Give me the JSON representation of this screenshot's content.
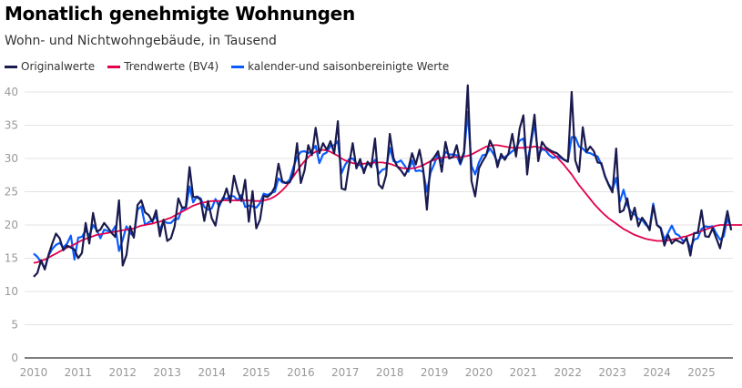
{
  "chart_data": {
    "type": "line",
    "title": "Monatlich genehmigte Wohnungen",
    "subtitle": "Wohn- und Nichtwohngebäude, in Tausend",
    "xlabel": "",
    "ylabel": "",
    "ylim": [
      0,
      40
    ],
    "yticks": [
      "0",
      "5",
      "10",
      "15",
      "20",
      "25",
      "30",
      "35",
      "40"
    ],
    "xticks": [
      "2010",
      "2011",
      "2012",
      "2013",
      "2014",
      "2015",
      "2016",
      "2017",
      "2018",
      "2019",
      "2020",
      "2021",
      "2022",
      "2023",
      "2024",
      "2025"
    ],
    "x_start": "2010-01",
    "x_frequency": "monthly",
    "grid": true,
    "legend_position": "top-left",
    "series": [
      {
        "name": "Originalwerte",
        "color": "#1a1a4e",
        "values": [
          12.2,
          12.8,
          14.7,
          13.3,
          15.5,
          17.2,
          18.7,
          18.0,
          16.2,
          16.9,
          16.6,
          16.3,
          15.0,
          15.8,
          20.3,
          17.2,
          21.8,
          19.0,
          19.3,
          20.3,
          19.6,
          18.8,
          18.2,
          23.7,
          13.9,
          15.5,
          19.8,
          18.1,
          23.0,
          23.7,
          21.9,
          21.5,
          20.5,
          22.2,
          18.3,
          20.8,
          17.6,
          18.0,
          19.8,
          24.0,
          22.6,
          22.7,
          28.7,
          24.2,
          24.2,
          23.8,
          20.6,
          23.6,
          21.0,
          19.9,
          23.2,
          23.8,
          25.5,
          23.4,
          27.4,
          25.1,
          23.6,
          26.8,
          20.5,
          25.1,
          19.5,
          20.8,
          24.4,
          24.2,
          24.7,
          25.7,
          29.2,
          26.6,
          26.3,
          26.4,
          27.8,
          32.3,
          26.3,
          28.2,
          32.0,
          30.5,
          34.6,
          30.8,
          32.3,
          31.3,
          32.6,
          30.8,
          35.6,
          25.5,
          25.3,
          29.0,
          32.3,
          28.5,
          29.9,
          27.8,
          29.5,
          28.7,
          33.0,
          26.1,
          25.5,
          27.5,
          33.7,
          30.0,
          28.8,
          28.2,
          27.4,
          28.5,
          30.8,
          29.1,
          31.3,
          28.3,
          22.3,
          29.5,
          30.2,
          31.1,
          28.0,
          32.5,
          30.0,
          30.2,
          32.0,
          29.3,
          31.0,
          41.0,
          26.6,
          24.3,
          28.5,
          29.6,
          30.5,
          32.7,
          31.5,
          28.7,
          30.7,
          29.8,
          30.8,
          33.7,
          30.3,
          34.5,
          36.5,
          27.6,
          32.5,
          36.6,
          29.6,
          32.5,
          31.7,
          31.3,
          31.0,
          30.8,
          30.3,
          29.8,
          29.5,
          40.0,
          29.7,
          28.0,
          34.7,
          31.0,
          31.8,
          31.1,
          29.4,
          29.3,
          27.3,
          26.0,
          24.9,
          31.5,
          21.9,
          22.2,
          24.0,
          20.8,
          22.6,
          19.8,
          21.1,
          20.3,
          19.2,
          22.9,
          20.0,
          19.5,
          16.9,
          18.5,
          17.2,
          17.8,
          17.5,
          17.2,
          18.1,
          15.4,
          18.8,
          18.8,
          22.2,
          18.3,
          18.2,
          19.5,
          18.0,
          16.5,
          19.2,
          22.1,
          19.2
        ]
      },
      {
        "name": "Trendwerte (BV4)",
        "color": "#e2004b",
        "values": [
          14.3,
          14.4,
          14.6,
          14.8,
          15.1,
          15.4,
          15.7,
          16.0,
          16.3,
          16.6,
          16.8,
          17.1,
          17.4,
          17.7,
          17.9,
          18.1,
          18.3,
          18.5,
          18.6,
          18.7,
          18.8,
          18.9,
          19.0,
          19.1,
          19.2,
          19.3,
          19.4,
          19.5,
          19.7,
          19.9,
          20.0,
          20.1,
          20.2,
          20.4,
          20.5,
          20.7,
          20.9,
          21.1,
          21.4,
          21.7,
          22.0,
          22.3,
          22.6,
          22.9,
          23.1,
          23.3,
          23.4,
          23.5,
          23.6,
          23.6,
          23.6,
          23.7,
          23.7,
          23.7,
          23.7,
          23.7,
          23.7,
          23.7,
          23.7,
          23.6,
          23.6,
          23.6,
          23.7,
          23.8,
          24.0,
          24.3,
          24.7,
          25.2,
          25.8,
          26.5,
          27.3,
          28.1,
          28.9,
          29.6,
          30.2,
          30.7,
          31.0,
          31.2,
          31.3,
          31.2,
          31.0,
          30.7,
          30.4,
          30.0,
          29.7,
          29.5,
          29.3,
          29.2,
          29.2,
          29.2,
          29.3,
          29.3,
          29.4,
          29.4,
          29.4,
          29.3,
          29.2,
          29.0,
          28.8,
          28.6,
          28.5,
          28.5,
          28.5,
          28.6,
          28.8,
          29.0,
          29.3,
          29.6,
          29.8,
          30.0,
          30.1,
          30.2,
          30.2,
          30.2,
          30.2,
          30.2,
          30.3,
          30.4,
          30.6,
          30.9,
          31.2,
          31.5,
          31.8,
          31.9,
          32.0,
          32.0,
          31.9,
          31.8,
          31.7,
          31.6,
          31.6,
          31.6,
          31.6,
          31.7,
          31.7,
          31.8,
          31.7,
          31.6,
          31.4,
          31.1,
          30.7,
          30.2,
          29.6,
          29.0,
          28.3,
          27.6,
          26.8,
          26.0,
          25.3,
          24.6,
          23.9,
          23.2,
          22.6,
          22.0,
          21.5,
          21.0,
          20.6,
          20.2,
          19.8,
          19.4,
          19.1,
          18.8,
          18.5,
          18.3,
          18.1,
          17.9,
          17.8,
          17.7,
          17.6,
          17.6,
          17.6,
          17.7,
          17.8,
          17.9,
          18.0,
          18.2,
          18.3,
          18.5,
          18.7,
          18.9,
          19.1,
          19.3,
          19.5,
          19.7,
          19.9,
          20.0,
          20.0,
          20.0,
          20.0,
          20.0,
          20.0,
          20.0,
          20.0
        ]
      },
      {
        "name": "kalender-und saisonbereinigte Werte",
        "color": "#0a5cff",
        "values": [
          15.7,
          15.2,
          14.4,
          13.5,
          15.4,
          16.4,
          17.0,
          17.3,
          16.6,
          17.2,
          18.4,
          14.8,
          18.1,
          18.2,
          19.2,
          18.4,
          20.0,
          19.2,
          18.0,
          19.3,
          19.1,
          18.9,
          19.8,
          16.1,
          17.8,
          19.8,
          18.8,
          18.3,
          22.3,
          22.8,
          20.0,
          20.4,
          20.7,
          21.3,
          19.2,
          20.6,
          20.3,
          20.3,
          20.9,
          20.9,
          22.5,
          22.4,
          25.8,
          23.4,
          24.3,
          24.0,
          22.7,
          22.3,
          22.5,
          23.9,
          22.8,
          24.1,
          23.9,
          24.4,
          24.3,
          23.7,
          24.5,
          22.7,
          22.9,
          22.8,
          22.6,
          23.3,
          24.7,
          24.5,
          24.8,
          25.0,
          27.0,
          26.4,
          26.3,
          26.8,
          28.7,
          30.2,
          31.0,
          31.1,
          30.8,
          31.2,
          31.9,
          29.3,
          30.6,
          30.9,
          31.9,
          32.0,
          32.6,
          27.8,
          29.1,
          29.9,
          30.0,
          29.2,
          29.0,
          28.3,
          29.2,
          29.0,
          29.8,
          27.7,
          28.3,
          28.5,
          31.6,
          29.6,
          29.4,
          29.7,
          28.9,
          28.0,
          29.7,
          28.1,
          28.2,
          28.0,
          25.0,
          27.9,
          29.2,
          30.7,
          29.5,
          31.0,
          30.6,
          30.6,
          30.5,
          29.1,
          30.7,
          37.0,
          28.9,
          27.6,
          29.4,
          30.5,
          30.6,
          31.5,
          30.6,
          29.5,
          30.1,
          30.2,
          30.6,
          31.1,
          31.5,
          32.7,
          33.0,
          29.4,
          32.1,
          35.3,
          30.5,
          31.4,
          31.2,
          30.5,
          30.1,
          30.3,
          30.1,
          29.8,
          29.6,
          33.2,
          33.2,
          31.8,
          31.5,
          30.9,
          30.8,
          30.5,
          30.3,
          29.1,
          27.4,
          26.1,
          25.3,
          27.1,
          23.5,
          25.3,
          23.0,
          21.9,
          21.6,
          20.9,
          20.8,
          20.0,
          19.6,
          23.2,
          20.0,
          19.6,
          17.8,
          18.8,
          19.9,
          18.7,
          18.4,
          17.6,
          17.8,
          16.5,
          17.8,
          18.0,
          19.4,
          19.8,
          19.7,
          19.8,
          18.7,
          17.8,
          18.3,
          21.0,
          19.5
        ]
      }
    ]
  }
}
